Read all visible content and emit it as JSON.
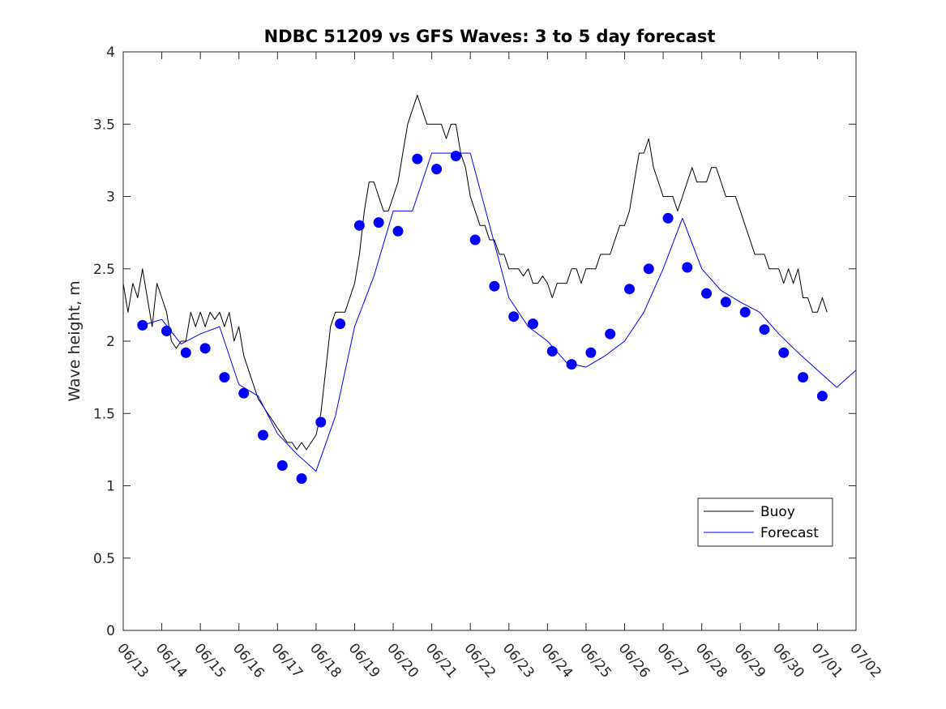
{
  "chart_data": {
    "type": "line",
    "title": "NDBC 51209 vs GFS Waves: 3 to 5 day forecast",
    "xlabel": "",
    "ylabel": "Wave height, m",
    "x_axis": {
      "unit": "days",
      "start_date": "06/13",
      "ticks": [
        "06/13",
        "06/14",
        "06/15",
        "06/16",
        "06/17",
        "06/18",
        "06/19",
        "06/20",
        "06/21",
        "06/22",
        "06/23",
        "06/24",
        "06/25",
        "06/26",
        "06/27",
        "06/28",
        "06/29",
        "06/30",
        "07/01",
        "07/02"
      ],
      "range": [
        "06/13",
        "07/02"
      ]
    },
    "ylim": [
      0,
      4
    ],
    "y_ticks": [
      "0",
      "0.5",
      "1",
      "1.5",
      "2",
      "2.5",
      "3",
      "3.5",
      "4"
    ],
    "grid": false,
    "legend": {
      "placement": "bottom-right",
      "entries": [
        "Buoy",
        "Forecast"
      ]
    },
    "series": [
      {
        "name": "Buoy",
        "color": "#000000",
        "style": "thin-line",
        "points": [
          [
            "06/13 00:00",
            2.4
          ],
          [
            "06/13 03:00",
            2.2
          ],
          [
            "06/13 06:00",
            2.4
          ],
          [
            "06/13 09:00",
            2.3
          ],
          [
            "06/13 12:00",
            2.5
          ],
          [
            "06/13 15:00",
            2.3
          ],
          [
            "06/13 18:00",
            2.1
          ],
          [
            "06/13 21:00",
            2.4
          ],
          [
            "06/14 00:00",
            2.3
          ],
          [
            "06/14 03:00",
            2.2
          ],
          [
            "06/14 06:00",
            2.0
          ],
          [
            "06/14 09:00",
            1.95
          ],
          [
            "06/14 12:00",
            2.0
          ],
          [
            "06/14 15:00",
            2.0
          ],
          [
            "06/14 18:00",
            2.2
          ],
          [
            "06/14 21:00",
            2.1
          ],
          [
            "06/15 00:00",
            2.2
          ],
          [
            "06/15 03:00",
            2.1
          ],
          [
            "06/15 06:00",
            2.2
          ],
          [
            "06/15 09:00",
            2.15
          ],
          [
            "06/15 12:00",
            2.2
          ],
          [
            "06/15 15:00",
            2.1
          ],
          [
            "06/15 18:00",
            2.2
          ],
          [
            "06/15 21:00",
            2.0
          ],
          [
            "06/16 00:00",
            2.1
          ],
          [
            "06/16 03:00",
            1.9
          ],
          [
            "06/16 06:00",
            1.8
          ],
          [
            "06/16 09:00",
            1.7
          ],
          [
            "06/16 12:00",
            1.6
          ],
          [
            "06/16 15:00",
            1.55
          ],
          [
            "06/16 18:00",
            1.5
          ],
          [
            "06/16 21:00",
            1.45
          ],
          [
            "06/17 00:00",
            1.4
          ],
          [
            "06/17 03:00",
            1.35
          ],
          [
            "06/17 06:00",
            1.3
          ],
          [
            "06/17 09:00",
            1.3
          ],
          [
            "06/17 12:00",
            1.25
          ],
          [
            "06/17 15:00",
            1.3
          ],
          [
            "06/17 18:00",
            1.25
          ],
          [
            "06/17 21:00",
            1.3
          ],
          [
            "06/18 00:00",
            1.35
          ],
          [
            "06/18 03:00",
            1.5
          ],
          [
            "06/18 06:00",
            1.8
          ],
          [
            "06/18 09:00",
            2.1
          ],
          [
            "06/18 12:00",
            2.2
          ],
          [
            "06/18 15:00",
            2.2
          ],
          [
            "06/18 18:00",
            2.2
          ],
          [
            "06/18 21:00",
            2.3
          ],
          [
            "06/19 00:00",
            2.4
          ],
          [
            "06/19 03:00",
            2.6
          ],
          [
            "06/19 06:00",
            2.9
          ],
          [
            "06/19 09:00",
            3.1
          ],
          [
            "06/19 12:00",
            3.1
          ],
          [
            "06/19 15:00",
            3.0
          ],
          [
            "06/19 18:00",
            2.9
          ],
          [
            "06/19 21:00",
            2.9
          ],
          [
            "06/20 00:00",
            3.0
          ],
          [
            "06/20 03:00",
            3.1
          ],
          [
            "06/20 06:00",
            3.3
          ],
          [
            "06/20 09:00",
            3.5
          ],
          [
            "06/20 12:00",
            3.6
          ],
          [
            "06/20 15:00",
            3.7
          ],
          [
            "06/20 18:00",
            3.6
          ],
          [
            "06/20 21:00",
            3.5
          ],
          [
            "06/21 00:00",
            3.5
          ],
          [
            "06/21 03:00",
            3.5
          ],
          [
            "06/21 06:00",
            3.5
          ],
          [
            "06/21 09:00",
            3.4
          ],
          [
            "06/21 12:00",
            3.5
          ],
          [
            "06/21 15:00",
            3.5
          ],
          [
            "06/21 18:00",
            3.3
          ],
          [
            "06/21 21:00",
            3.2
          ],
          [
            "06/22 00:00",
            3.0
          ],
          [
            "06/22 03:00",
            2.9
          ],
          [
            "06/22 06:00",
            2.8
          ],
          [
            "06/22 09:00",
            2.8
          ],
          [
            "06/22 12:00",
            2.7
          ],
          [
            "06/22 15:00",
            2.7
          ],
          [
            "06/22 18:00",
            2.6
          ],
          [
            "06/22 21:00",
            2.6
          ],
          [
            "06/23 00:00",
            2.5
          ],
          [
            "06/23 03:00",
            2.5
          ],
          [
            "06/23 06:00",
            2.5
          ],
          [
            "06/23 09:00",
            2.45
          ],
          [
            "06/23 12:00",
            2.5
          ],
          [
            "06/23 15:00",
            2.4
          ],
          [
            "06/23 18:00",
            2.4
          ],
          [
            "06/23 21:00",
            2.45
          ],
          [
            "06/24 00:00",
            2.4
          ],
          [
            "06/24 03:00",
            2.3
          ],
          [
            "06/24 06:00",
            2.4
          ],
          [
            "06/24 09:00",
            2.4
          ],
          [
            "06/24 12:00",
            2.4
          ],
          [
            "06/24 15:00",
            2.5
          ],
          [
            "06/24 18:00",
            2.5
          ],
          [
            "06/24 21:00",
            2.4
          ],
          [
            "06/25 00:00",
            2.5
          ],
          [
            "06/25 03:00",
            2.5
          ],
          [
            "06/25 06:00",
            2.5
          ],
          [
            "06/25 09:00",
            2.6
          ],
          [
            "06/25 12:00",
            2.6
          ],
          [
            "06/25 15:00",
            2.6
          ],
          [
            "06/25 18:00",
            2.7
          ],
          [
            "06/25 21:00",
            2.8
          ],
          [
            "06/26 00:00",
            2.8
          ],
          [
            "06/26 03:00",
            2.9
          ],
          [
            "06/26 06:00",
            3.1
          ],
          [
            "06/26 09:00",
            3.3
          ],
          [
            "06/26 12:00",
            3.3
          ],
          [
            "06/26 15:00",
            3.4
          ],
          [
            "06/26 18:00",
            3.2
          ],
          [
            "06/26 21:00",
            3.1
          ],
          [
            "06/27 00:00",
            3.0
          ],
          [
            "06/27 03:00",
            3.0
          ],
          [
            "06/27 06:00",
            3.0
          ],
          [
            "06/27 09:00",
            2.9
          ],
          [
            "06/27 12:00",
            3.0
          ],
          [
            "06/27 15:00",
            3.1
          ],
          [
            "06/27 18:00",
            3.2
          ],
          [
            "06/27 21:00",
            3.1
          ],
          [
            "06/28 00:00",
            3.1
          ],
          [
            "06/28 03:00",
            3.1
          ],
          [
            "06/28 06:00",
            3.2
          ],
          [
            "06/28 09:00",
            3.2
          ],
          [
            "06/28 12:00",
            3.1
          ],
          [
            "06/28 15:00",
            3.0
          ],
          [
            "06/28 18:00",
            3.0
          ],
          [
            "06/28 21:00",
            3.0
          ],
          [
            "06/29 00:00",
            2.9
          ],
          [
            "06/29 03:00",
            2.8
          ],
          [
            "06/29 06:00",
            2.7
          ],
          [
            "06/29 09:00",
            2.6
          ],
          [
            "06/29 12:00",
            2.6
          ],
          [
            "06/29 15:00",
            2.6
          ],
          [
            "06/29 18:00",
            2.5
          ],
          [
            "06/29 21:00",
            2.5
          ],
          [
            "06/30 00:00",
            2.5
          ],
          [
            "06/30 03:00",
            2.4
          ],
          [
            "06/30 06:00",
            2.5
          ],
          [
            "06/30 09:00",
            2.4
          ],
          [
            "06/30 12:00",
            2.5
          ],
          [
            "06/30 15:00",
            2.3
          ],
          [
            "06/30 18:00",
            2.3
          ],
          [
            "06/30 21:00",
            2.2
          ],
          [
            "07/01 00:00",
            2.2
          ],
          [
            "07/01 03:00",
            2.3
          ],
          [
            "07/01 06:00",
            2.2
          ]
        ]
      },
      {
        "name": "Forecast",
        "color": "#0000ff",
        "style": "thin-line",
        "points": [
          [
            "06/13 12:00",
            2.11
          ],
          [
            "06/14 00:00",
            2.15
          ],
          [
            "06/14 12:00",
            1.98
          ],
          [
            "06/15 00:00",
            2.05
          ],
          [
            "06/15 12:00",
            2.1
          ],
          [
            "06/16 00:00",
            1.7
          ],
          [
            "06/16 12:00",
            1.62
          ],
          [
            "06/17 00:00",
            1.36
          ],
          [
            "06/17 12:00",
            1.22
          ],
          [
            "06/18 00:00",
            1.1
          ],
          [
            "06/18 12:00",
            1.48
          ],
          [
            "06/19 00:00",
            2.1
          ],
          [
            "06/19 12:00",
            2.45
          ],
          [
            "06/20 00:00",
            2.9
          ],
          [
            "06/20 12:00",
            2.9
          ],
          [
            "06/21 00:00",
            3.3
          ],
          [
            "06/21 12:00",
            3.3
          ],
          [
            "06/22 00:00",
            3.3
          ],
          [
            "06/22 12:00",
            2.8
          ],
          [
            "06/23 00:00",
            2.3
          ],
          [
            "06/23 12:00",
            2.1
          ],
          [
            "06/24 00:00",
            2.0
          ],
          [
            "06/24 12:00",
            1.85
          ],
          [
            "06/25 00:00",
            1.82
          ],
          [
            "06/25 12:00",
            1.9
          ],
          [
            "06/26 00:00",
            2.0
          ],
          [
            "06/26 12:00",
            2.2
          ],
          [
            "06/27 00:00",
            2.5
          ],
          [
            "06/27 12:00",
            2.85
          ],
          [
            "06/28 00:00",
            2.5
          ],
          [
            "06/28 12:00",
            2.35
          ],
          [
            "06/29 00:00",
            2.27
          ],
          [
            "06/29 12:00",
            2.2
          ],
          [
            "06/30 00:00",
            2.05
          ],
          [
            "06/30 12:00",
            1.92
          ],
          [
            "07/01 00:00",
            1.8
          ],
          [
            "07/01 12:00",
            1.68
          ],
          [
            "07/02 00:00",
            1.8
          ]
        ]
      },
      {
        "name": "",
        "color": "#0000ff",
        "style": "markers",
        "points": [
          [
            "06/13 12:00",
            2.11
          ],
          [
            "06/14 03:00",
            2.07
          ],
          [
            "06/14 15:00",
            1.92
          ],
          [
            "06/15 03:00",
            1.95
          ],
          [
            "06/15 15:00",
            1.75
          ],
          [
            "06/16 03:00",
            1.64
          ],
          [
            "06/16 15:00",
            1.35
          ],
          [
            "06/17 03:00",
            1.14
          ],
          [
            "06/17 15:00",
            1.05
          ],
          [
            "06/18 03:00",
            1.44
          ],
          [
            "06/18 15:00",
            2.12
          ],
          [
            "06/19 03:00",
            2.8
          ],
          [
            "06/19 15:00",
            2.82
          ],
          [
            "06/20 03:00",
            2.76
          ],
          [
            "06/20 15:00",
            3.26
          ],
          [
            "06/21 03:00",
            3.19
          ],
          [
            "06/21 15:00",
            3.28
          ],
          [
            "06/22 03:00",
            2.7
          ],
          [
            "06/22 15:00",
            2.38
          ],
          [
            "06/23 03:00",
            2.17
          ],
          [
            "06/23 15:00",
            2.12
          ],
          [
            "06/24 03:00",
            1.93
          ],
          [
            "06/24 15:00",
            1.84
          ],
          [
            "06/25 03:00",
            1.92
          ],
          [
            "06/25 15:00",
            2.05
          ],
          [
            "06/26 03:00",
            2.36
          ],
          [
            "06/26 15:00",
            2.5
          ],
          [
            "06/27 03:00",
            2.85
          ],
          [
            "06/27 15:00",
            2.51
          ],
          [
            "06/28 03:00",
            2.33
          ],
          [
            "06/28 15:00",
            2.27
          ],
          [
            "06/29 03:00",
            2.2
          ],
          [
            "06/29 15:00",
            2.08
          ],
          [
            "06/30 03:00",
            1.92
          ],
          [
            "06/30 15:00",
            1.75
          ],
          [
            "07/01 03:00",
            1.62
          ]
        ]
      }
    ]
  }
}
